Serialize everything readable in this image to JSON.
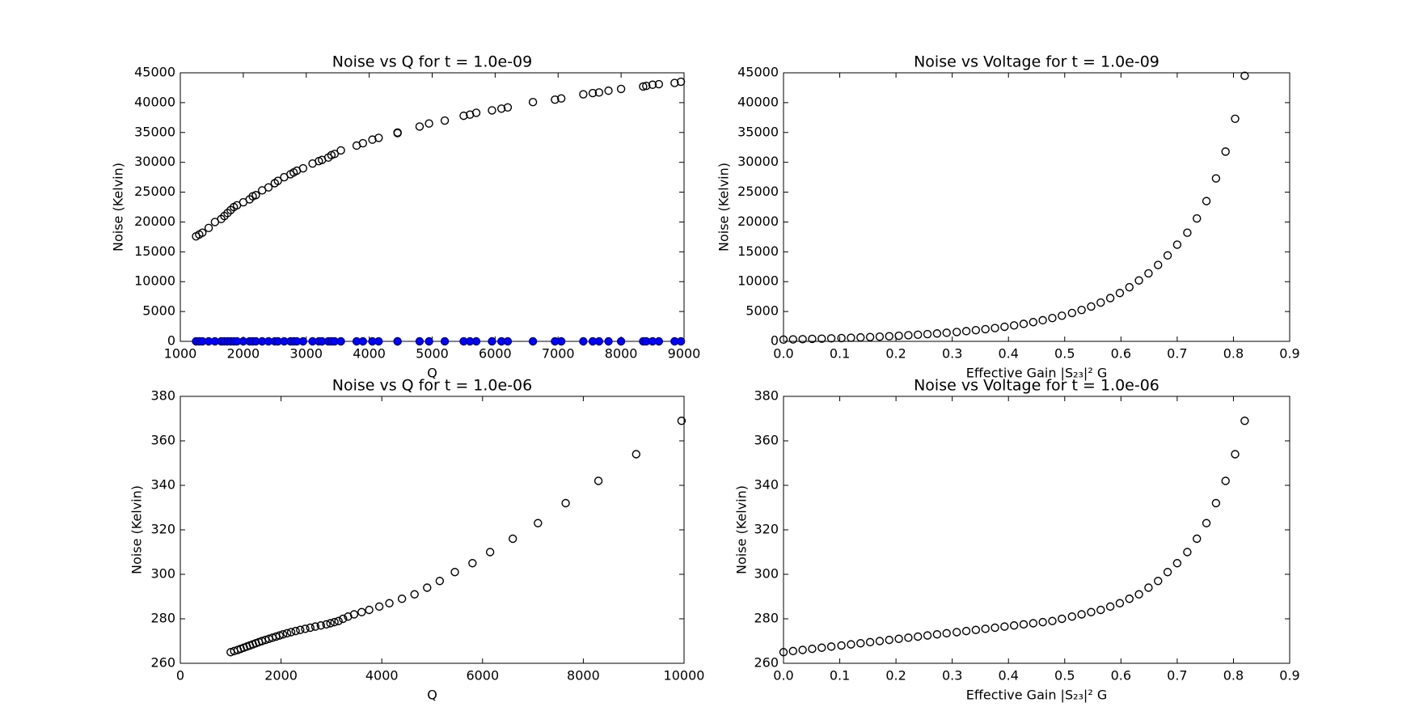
{
  "chart_data": [
    {
      "type": "scatter",
      "title": "Noise vs Q for t = 1.0e-09",
      "xlabel": "Q",
      "ylabel": "Noise (Kelvin)",
      "x": [
        1250,
        1300,
        1350,
        1450,
        1550,
        1650,
        1700,
        1750,
        1800,
        1850,
        1900,
        2000,
        2100,
        2150,
        2200,
        2300,
        2400,
        2500,
        2550,
        2650,
        2750,
        2800,
        2850,
        2950,
        3100,
        3200,
        3250,
        3350,
        3400,
        3450,
        3550,
        3800,
        3900,
        4050,
        4150,
        4450,
        4450,
        4800,
        4950,
        5200,
        5500,
        5600,
        5700,
        5950,
        6100,
        6200,
        6600,
        6950,
        7050,
        7400,
        7550,
        7650,
        7800,
        8000,
        8350,
        8400,
        8500,
        8600,
        8850,
        8950
      ],
      "series": [
        {
          "color": "#000000",
          "filled": false,
          "values": [
            17600,
            17900,
            18200,
            19000,
            20000,
            20500,
            21000,
            21500,
            22000,
            22500,
            22800,
            23300,
            23800,
            24300,
            24500,
            25300,
            25800,
            26500,
            26900,
            27500,
            28000,
            28300,
            28600,
            29000,
            29800,
            30200,
            30400,
            30800,
            31200,
            31400,
            32000,
            32800,
            33200,
            33800,
            34100,
            34900,
            35000,
            36000,
            36500,
            37000,
            37800,
            38000,
            38300,
            38700,
            39000,
            39200,
            40100,
            40500,
            40700,
            41400,
            41600,
            41700,
            42000,
            42300,
            42700,
            42800,
            43000,
            43100,
            43300,
            43500
          ]
        },
        {
          "color": "#0000ff",
          "filled": true,
          "values": [
            0,
            0,
            0,
            0,
            0,
            0,
            0,
            0,
            0,
            0,
            0,
            0,
            0,
            0,
            0,
            0,
            0,
            0,
            0,
            0,
            0,
            0,
            0,
            0,
            0,
            0,
            0,
            0,
            0,
            0,
            0,
            0,
            0,
            0,
            0,
            0,
            0,
            0,
            0,
            0,
            0,
            0,
            0,
            0,
            0,
            0,
            0,
            0,
            0,
            0,
            0,
            0,
            0,
            0,
            0,
            0,
            0,
            0,
            0,
            0
          ]
        }
      ],
      "xlim": [
        1000,
        9000
      ],
      "xticks": [
        1000,
        2000,
        3000,
        4000,
        5000,
        6000,
        7000,
        8000,
        9000
      ],
      "ylim": [
        0,
        45000
      ],
      "yticks": [
        0,
        5000,
        10000,
        15000,
        20000,
        25000,
        30000,
        35000,
        40000,
        45000
      ]
    },
    {
      "type": "scatter",
      "title": "Noise vs Voltage for t = 1.0e-09",
      "xlabel": "Effective Gain |S₂₃|² G",
      "ylabel": "Noise (Kelvin)",
      "x": [
        0,
        0.017,
        0.034,
        0.051,
        0.068,
        0.085,
        0.103,
        0.12,
        0.137,
        0.154,
        0.171,
        0.188,
        0.205,
        0.222,
        0.239,
        0.256,
        0.273,
        0.29,
        0.308,
        0.325,
        0.342,
        0.359,
        0.376,
        0.393,
        0.41,
        0.427,
        0.444,
        0.461,
        0.478,
        0.495,
        0.513,
        0.53,
        0.547,
        0.564,
        0.581,
        0.598,
        0.615,
        0.632,
        0.649,
        0.666,
        0.683,
        0.7,
        0.718,
        0.735,
        0.752,
        0.769,
        0.786,
        0.803,
        0.82
      ],
      "series": [
        {
          "color": "#000000",
          "filled": false,
          "values": [
            300,
            330,
            370,
            410,
            450,
            500,
            550,
            600,
            660,
            720,
            790,
            860,
            940,
            1020,
            1110,
            1210,
            1320,
            1440,
            1570,
            1710,
            1870,
            2040,
            2230,
            2440,
            2670,
            2930,
            3220,
            3540,
            3900,
            4300,
            4750,
            5260,
            5840,
            6500,
            7250,
            8100,
            9070,
            10200,
            11400,
            12800,
            14400,
            16200,
            18200,
            20600,
            23500,
            27300,
            31800,
            37300,
            44500
          ]
        }
      ],
      "xlim": [
        0,
        0.9
      ],
      "xticks": [
        {
          "value": 0,
          "label": "0.0"
        },
        0.1,
        0.2,
        0.3,
        0.4,
        0.5,
        0.6,
        0.7,
        0.8,
        0.9
      ],
      "ylim": [
        0,
        45000
      ],
      "yticks": [
        0,
        5000,
        10000,
        15000,
        20000,
        25000,
        30000,
        35000,
        40000,
        45000
      ]
    },
    {
      "type": "scatter",
      "title": "Noise vs Q for t = 1.0e-06",
      "xlabel": "Q",
      "ylabel": "Noise (Kelvin)",
      "x": [
        1000,
        1070,
        1140,
        1200,
        1260,
        1320,
        1380,
        1440,
        1500,
        1560,
        1620,
        1690,
        1760,
        1830,
        1900,
        1970,
        2040,
        2120,
        2200,
        2290,
        2380,
        2480,
        2580,
        2680,
        2790,
        2900,
        2980,
        3060,
        3140,
        3230,
        3330,
        3450,
        3600,
        3750,
        3950,
        4150,
        4400,
        4650,
        4900,
        5150,
        5450,
        5800,
        6150,
        6600,
        7100,
        7650,
        8300,
        9050,
        9950
      ],
      "series": [
        {
          "color": "#000000",
          "filled": false,
          "values": [
            265,
            265.5,
            266,
            266.5,
            267,
            267.5,
            268,
            268.5,
            269,
            269.5,
            270,
            270.5,
            271,
            271.5,
            272,
            272.5,
            273,
            273.5,
            274,
            274.5,
            275,
            275.5,
            276,
            276.5,
            277,
            277.5,
            278,
            278.5,
            279,
            280,
            281,
            282,
            283,
            284,
            285.5,
            287,
            289,
            291,
            294,
            297,
            301,
            305,
            310,
            316,
            323,
            332,
            342,
            354,
            369
          ]
        }
      ],
      "xlim": [
        0,
        10000
      ],
      "xticks": [
        0,
        2000,
        4000,
        6000,
        8000,
        10000
      ],
      "ylim": [
        260,
        380
      ],
      "yticks": [
        260,
        280,
        300,
        320,
        340,
        360,
        380
      ]
    },
    {
      "type": "scatter",
      "title": "Noise vs Voltage for t = 1.0e-06",
      "xlabel": "Effective Gain |S₂₃|² G",
      "ylabel": "Noise (Kelvin)",
      "x": [
        0,
        0.017,
        0.034,
        0.051,
        0.068,
        0.085,
        0.103,
        0.12,
        0.137,
        0.154,
        0.171,
        0.188,
        0.205,
        0.222,
        0.239,
        0.256,
        0.273,
        0.29,
        0.308,
        0.325,
        0.342,
        0.359,
        0.376,
        0.393,
        0.41,
        0.427,
        0.444,
        0.461,
        0.478,
        0.495,
        0.513,
        0.53,
        0.547,
        0.564,
        0.581,
        0.598,
        0.615,
        0.632,
        0.649,
        0.666,
        0.683,
        0.7,
        0.718,
        0.735,
        0.752,
        0.769,
        0.786,
        0.803,
        0.82
      ],
      "series": [
        {
          "color": "#000000",
          "filled": false,
          "values": [
            265,
            265.5,
            266,
            266.5,
            267,
            267.5,
            268,
            268.5,
            269,
            269.5,
            270,
            270.5,
            271,
            271.5,
            272,
            272.5,
            273,
            273.5,
            274,
            274.5,
            275,
            275.5,
            276,
            276.5,
            277,
            277.5,
            278,
            278.5,
            279,
            280,
            281,
            282,
            283,
            284,
            285.5,
            287,
            289,
            291,
            294,
            297,
            301,
            305,
            310,
            316,
            323,
            332,
            342,
            354,
            369
          ]
        }
      ],
      "xlim": [
        0,
        0.9
      ],
      "xticks": [
        {
          "value": 0,
          "label": "0.0"
        },
        0.1,
        0.2,
        0.3,
        0.4,
        0.5,
        0.6,
        0.7,
        0.8,
        0.9
      ],
      "ylim": [
        260,
        380
      ],
      "yticks": [
        260,
        280,
        300,
        320,
        340,
        360,
        380
      ]
    }
  ]
}
